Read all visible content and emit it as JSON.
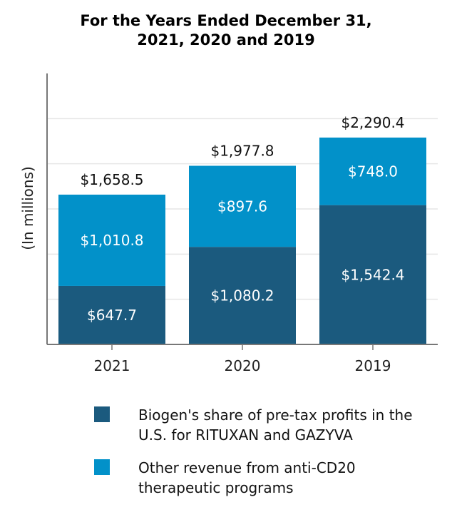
{
  "chart_data": {
    "type": "bar",
    "stacked": true,
    "title_line1": "For the Years Ended December 31,",
    "title_line2": "2021, 2020 and 2019",
    "ylabel": "(In millions)",
    "xlabel": "",
    "categories": [
      "2021",
      "2020",
      "2019"
    ],
    "series": [
      {
        "name": "Biogen's share of pre-tax profits in the U.S. for RITUXAN and GAZYVA",
        "color": "#1b5a7e",
        "values": [
          647.7,
          1080.2,
          1542.4
        ],
        "labels": [
          "$647.7",
          "$1,080.2",
          "$1,542.4"
        ]
      },
      {
        "name": "Other revenue from anti-CD20 therapeutic programs",
        "color": "#0291c9",
        "values": [
          1010.8,
          897.6,
          748.0
        ],
        "labels": [
          "$1,010.8",
          "$897.6",
          "$748.0"
        ]
      }
    ],
    "totals": [
      "$1,658.5",
      "$1,977.8",
      "$2,290.4"
    ],
    "ylim": [
      0,
      3000
    ],
    "grid": true,
    "legend_position": "bottom"
  },
  "legend": {
    "item1_line1": "Biogen's share of pre-tax profits in the",
    "item1_line2": "U.S. for RITUXAN and GAZYVA",
    "item2_line1": "Other revenue from anti-CD20",
    "item2_line2": "therapeutic programs"
  }
}
